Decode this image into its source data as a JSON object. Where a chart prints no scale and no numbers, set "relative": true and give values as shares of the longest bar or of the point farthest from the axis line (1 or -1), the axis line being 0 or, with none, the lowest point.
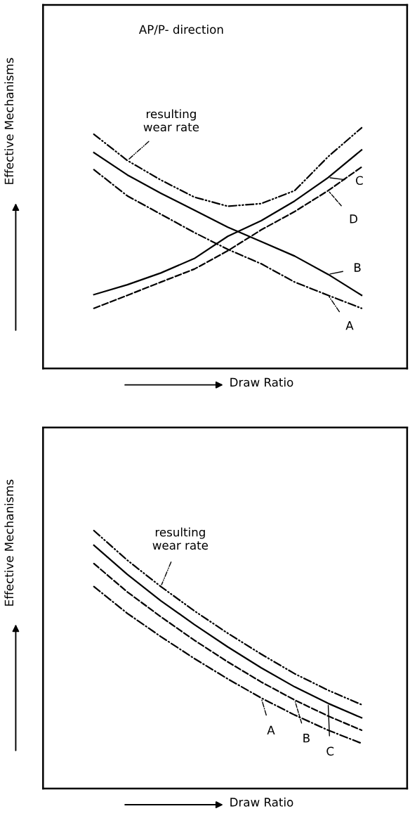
{
  "chart_data": [
    {
      "type": "line",
      "relative": true,
      "xlabel": "Draw Ratio",
      "ylabel": "Effective Mechanisms",
      "annotations": [
        "AP/P- direction"
      ],
      "marker": "none",
      "legend": "right",
      "categories": [
        null,
        null,
        null,
        null,
        null,
        null,
        null,
        null,
        null
      ],
      "series": [
        {
          "name": "resulting\nwear rate",
          "color": "#000000",
          "line_style": "dashdotdot",
          "values": [
            0.973,
            0.864,
            0.783,
            0.712,
            0.674,
            0.685,
            0.739,
            0.88,
            1
          ]
        },
        {
          "name": "B",
          "color": "#000000",
          "line_style": "solid",
          "values": [
            0.897,
            0.804,
            0.728,
            0.658,
            0.587,
            0.527,
            0.467,
            0.391,
            0.304
          ]
        },
        {
          "name": "A",
          "color": "#000000",
          "line_style": "dashdot",
          "values": [
            0.826,
            0.717,
            0.641,
            0.565,
            0.495,
            0.435,
            0.359,
            0.304,
            0.25
          ]
        },
        {
          "name": "C",
          "color": "#000000",
          "line_style": "solid",
          "values": [
            0.307,
            0.348,
            0.397,
            0.457,
            0.549,
            0.614,
            0.696,
            0.793,
            0.908
          ]
        },
        {
          "name": "D",
          "color": "#000000",
          "line_style": "dashed",
          "values": [
            0.25,
            0.304,
            0.359,
            0.413,
            0.489,
            0.576,
            0.652,
            0.739,
            0.837
          ]
        }
      ]
    },
    {
      "type": "line",
      "relative": true,
      "xlabel": "Draw Ratio",
      "ylabel": "Effective Mechanisms",
      "marker": "none",
      "legend": "bottom right",
      "categories": [
        null,
        null,
        null,
        null,
        null,
        null,
        null,
        null,
        null
      ],
      "series": [
        {
          "name": "resulting\nwear rate",
          "color": "#000000",
          "line_style": "dashdotdot",
          "values": [
            1,
            0.885,
            0.783,
            0.689,
            0.602,
            0.521,
            0.445,
            0.381,
            0.325
          ]
        },
        {
          "name": "C",
          "color": "#000000",
          "line_style": "solid",
          "values": [
            0.943,
            0.83,
            0.728,
            0.636,
            0.549,
            0.468,
            0.394,
            0.33,
            0.274
          ]
        },
        {
          "name": "B",
          "color": "#000000",
          "line_style": "dashed",
          "values": [
            0.872,
            0.762,
            0.666,
            0.575,
            0.491,
            0.413,
            0.343,
            0.281,
            0.226
          ]
        },
        {
          "name": "A",
          "color": "#000000",
          "line_style": "dashdot",
          "values": [
            0.783,
            0.679,
            0.589,
            0.504,
            0.425,
            0.351,
            0.285,
            0.226,
            0.175
          ]
        }
      ]
    }
  ]
}
